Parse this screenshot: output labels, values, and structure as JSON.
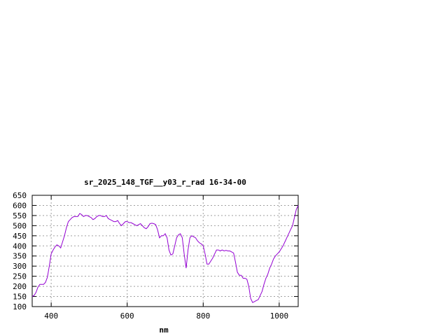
{
  "chart_data": {
    "type": "line",
    "title": "sr_2025_148_TGF__y03_r_rad 16-34-00",
    "xlabel": "nm",
    "ylabel": "",
    "xlim": [
      350,
      1050
    ],
    "ylim": [
      100,
      650
    ],
    "xticks": [
      400,
      600,
      800,
      1000
    ],
    "yticks": [
      100,
      150,
      200,
      250,
      300,
      350,
      400,
      450,
      500,
      550,
      600,
      650
    ],
    "grid": true,
    "line_color": "#9400d3",
    "series": [
      {
        "name": "",
        "x": [
          350,
          355,
          360,
          365,
          370,
          375,
          380,
          385,
          390,
          395,
          400,
          405,
          410,
          415,
          420,
          425,
          430,
          435,
          440,
          445,
          450,
          455,
          460,
          465,
          470,
          475,
          480,
          485,
          490,
          495,
          500,
          505,
          510,
          515,
          520,
          525,
          530,
          535,
          540,
          545,
          550,
          555,
          560,
          565,
          570,
          575,
          580,
          585,
          590,
          595,
          600,
          605,
          610,
          615,
          620,
          625,
          630,
          635,
          640,
          645,
          650,
          655,
          660,
          665,
          670,
          675,
          680,
          685,
          690,
          695,
          700,
          705,
          710,
          715,
          720,
          725,
          730,
          735,
          740,
          745,
          750,
          755,
          760,
          765,
          770,
          775,
          780,
          785,
          790,
          795,
          800,
          805,
          810,
          815,
          820,
          825,
          830,
          835,
          840,
          845,
          850,
          855,
          860,
          865,
          870,
          875,
          880,
          885,
          890,
          895,
          900,
          905,
          910,
          915,
          920,
          925,
          930,
          935,
          940,
          945,
          950,
          955,
          960,
          965,
          970,
          975,
          980,
          985,
          990,
          995,
          1000,
          1005,
          1010,
          1015,
          1020,
          1025,
          1030,
          1035,
          1040,
          1045,
          1050
        ],
        "y": [
          150,
          155,
          170,
          195,
          210,
          210,
          210,
          220,
          245,
          300,
          360,
          380,
          395,
          405,
          400,
          390,
          420,
          450,
          490,
          520,
          530,
          540,
          545,
          545,
          545,
          560,
          555,
          545,
          550,
          550,
          545,
          540,
          530,
          535,
          545,
          550,
          550,
          545,
          545,
          550,
          535,
          530,
          525,
          520,
          520,
          525,
          510,
          500,
          510,
          520,
          520,
          515,
          515,
          510,
          505,
          500,
          505,
          510,
          500,
          490,
          485,
          495,
          510,
          512,
          510,
          505,
          480,
          440,
          450,
          450,
          460,
          440,
          380,
          355,
          360,
          400,
          440,
          455,
          460,
          440,
          360,
          290,
          380,
          440,
          450,
          445,
          440,
          425,
          415,
          410,
          400,
          360,
          310,
          310,
          325,
          340,
          360,
          380,
          380,
          375,
          380,
          375,
          378,
          375,
          375,
          370,
          365,
          320,
          270,
          255,
          255,
          240,
          240,
          235,
          200,
          140,
          120,
          125,
          130,
          135,
          155,
          175,
          210,
          240,
          260,
          290,
          310,
          335,
          350,
          360,
          370,
          385,
          400,
          420,
          440,
          460,
          480,
          500,
          540,
          580,
          600
        ]
      }
    ]
  }
}
